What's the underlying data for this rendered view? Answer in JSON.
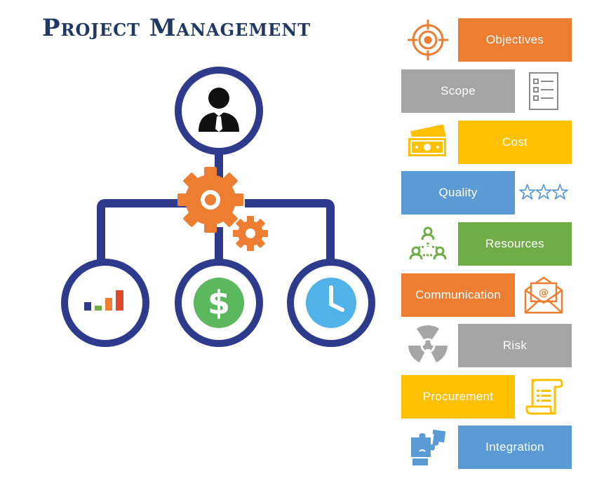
{
  "title": "Project Management",
  "colors": {
    "navy": "#2e3a8c",
    "gear": "#ed7d31",
    "orange": "#ed7d31",
    "gray": "#a5a5a5",
    "yellow": "#ffc000",
    "blue": "#5b9bd5",
    "green": "#70ad47",
    "dollar": "#5cb85c",
    "clock": "#4fb3e8"
  },
  "items": [
    {
      "label": "Objectives",
      "color": "#ed7d31",
      "icon": "target-icon",
      "icon_side": "left"
    },
    {
      "label": "Scope",
      "color": "#a5a5a5",
      "icon": "checklist-icon",
      "icon_side": "right"
    },
    {
      "label": "Cost",
      "color": "#ffc000",
      "icon": "money-icon",
      "icon_side": "left"
    },
    {
      "label": "Quality",
      "color": "#5b9bd5",
      "icon": "stars-icon",
      "icon_side": "right"
    },
    {
      "label": "Resources",
      "color": "#70ad47",
      "icon": "people-network-icon",
      "icon_side": "left"
    },
    {
      "label": "Communication",
      "color": "#ed7d31",
      "icon": "email-icon",
      "icon_side": "right"
    },
    {
      "label": "Risk",
      "color": "#a5a5a5",
      "icon": "radiation-icon",
      "icon_side": "left"
    },
    {
      "label": "Procurement",
      "color": "#ffc000",
      "icon": "scroll-icon",
      "icon_side": "right"
    },
    {
      "label": "Integration",
      "color": "#5b9bd5",
      "icon": "puzzle-icon",
      "icon_side": "left"
    }
  ],
  "hierarchy": {
    "top_icon": "manager-icon",
    "center_icon": "gears-icon",
    "bottom_icons": [
      "bar-chart-icon",
      "dollar-icon",
      "clock-icon"
    ]
  }
}
